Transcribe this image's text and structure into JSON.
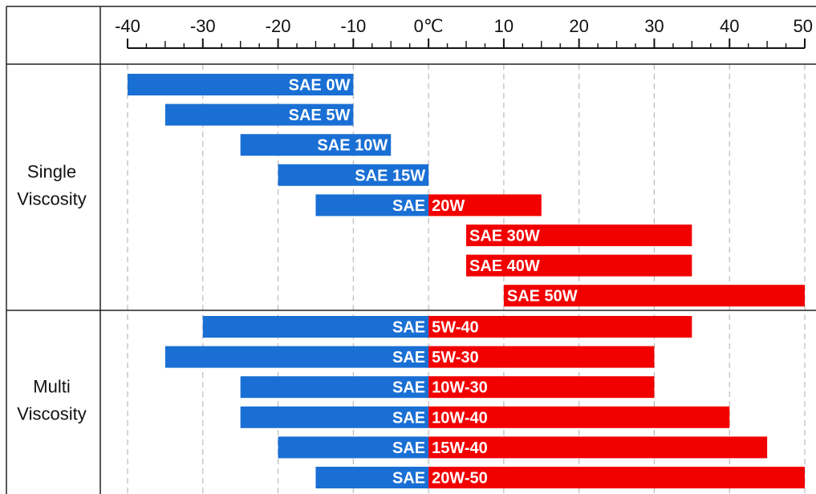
{
  "chart_data": {
    "type": "bar",
    "orientation": "horizontal-range",
    "title": "",
    "xlabel": "",
    "ylabel": "",
    "xlim": [
      -40,
      50
    ],
    "x_ticks": [
      {
        "value": -40,
        "label": "-40"
      },
      {
        "value": -30,
        "label": "-30"
      },
      {
        "value": -20,
        "label": "-20"
      },
      {
        "value": -10,
        "label": "-10"
      },
      {
        "value": 0,
        "label": "0℃"
      },
      {
        "value": 10,
        "label": "10"
      },
      {
        "value": 20,
        "label": "20"
      },
      {
        "value": 30,
        "label": "30"
      },
      {
        "value": 40,
        "label": "40"
      },
      {
        "value": 50,
        "label": "50"
      }
    ],
    "grid": "vertical-dashed",
    "colors": {
      "below_zero": "#1a6fd4",
      "above_zero": "#f20000",
      "grid": "#bbbbbb",
      "border": "#222222"
    },
    "groups": [
      {
        "label_lines": [
          "Single",
          "Viscosity"
        ],
        "bars": [
          {
            "blue_text": "SAE 0W",
            "red_text": "",
            "min": -40,
            "max": -10
          },
          {
            "blue_text": "SAE 5W",
            "red_text": "",
            "min": -35,
            "max": -10
          },
          {
            "blue_text": "SAE 10W",
            "red_text": "",
            "min": -25,
            "max": -5
          },
          {
            "blue_text": "SAE 15W",
            "red_text": "",
            "min": -20,
            "max": 0
          },
          {
            "blue_text": "SAE",
            "red_text": "20W",
            "min": -15,
            "max": 15
          },
          {
            "blue_text": "",
            "red_text": "SAE 30W",
            "min": 5,
            "max": 35
          },
          {
            "blue_text": "",
            "red_text": "SAE 40W",
            "min": 5,
            "max": 35
          },
          {
            "blue_text": "",
            "red_text": "SAE 50W",
            "min": 10,
            "max": 50
          }
        ]
      },
      {
        "label_lines": [
          "Multi",
          "Viscosity"
        ],
        "bars": [
          {
            "blue_text": "SAE",
            "red_text": "5W-40",
            "min": -30,
            "max": 35
          },
          {
            "blue_text": "SAE",
            "red_text": "5W-30",
            "min": -35,
            "max": 30
          },
          {
            "blue_text": "SAE",
            "red_text": "10W-30",
            "min": -25,
            "max": 30
          },
          {
            "blue_text": "SAE",
            "red_text": "10W-40",
            "min": -25,
            "max": 40
          },
          {
            "blue_text": "SAE",
            "red_text": "15W-40",
            "min": -20,
            "max": 45
          },
          {
            "blue_text": "SAE",
            "red_text": "20W-50",
            "min": -15,
            "max": 50
          }
        ]
      }
    ]
  }
}
